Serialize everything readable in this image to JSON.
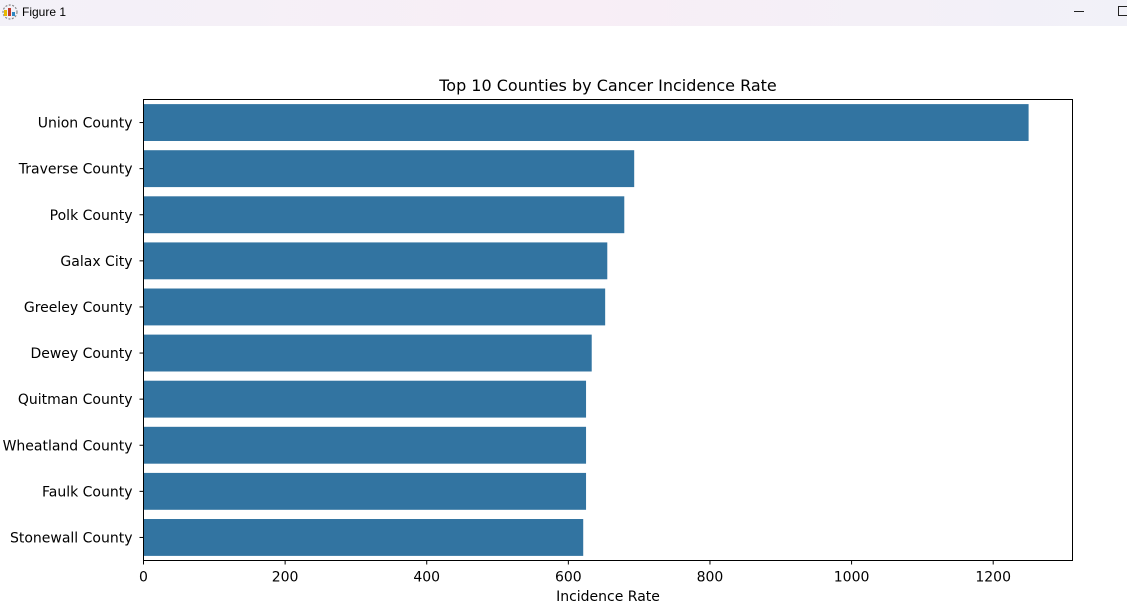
{
  "window": {
    "title": "Figure 1",
    "controls": [
      "minimize",
      "maximize"
    ]
  },
  "chart_data": {
    "type": "bar",
    "orientation": "horizontal",
    "title": "Top 10 Counties by Cancer Incidence Rate",
    "xlabel": "Incidence Rate",
    "ylabel": "",
    "categories": [
      "Union County",
      "Traverse County",
      "Polk County",
      "Galax City",
      "Greeley County",
      "Dewey County",
      "Quitman County",
      "Wheatland County",
      "Faulk County",
      "Stonewall County"
    ],
    "values": [
      1250,
      693,
      679,
      655,
      652,
      633,
      625,
      625,
      625,
      621
    ],
    "xlim": [
      0,
      1312
    ],
    "xticks": [
      0,
      200,
      400,
      600,
      800,
      1000,
      1200
    ],
    "bar_color": "#3274a1",
    "grid": false,
    "legend": "none"
  }
}
